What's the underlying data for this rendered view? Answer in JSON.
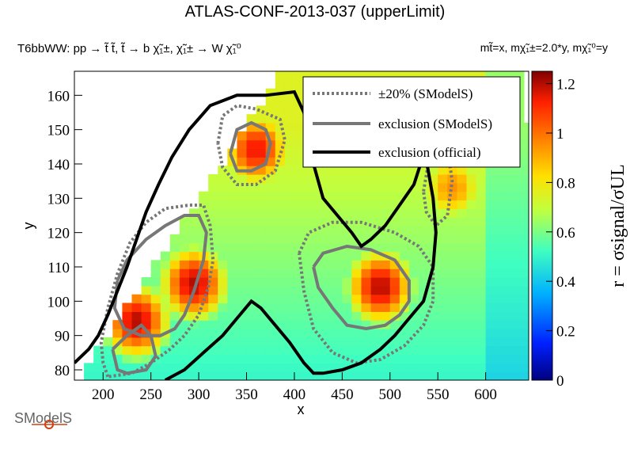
{
  "title": "ATLAS-CONF-2013-037     (upperLimit)",
  "subtitle_left": "T6bbWW: pp  → t̃ t̃, t̃  → b χ̃₁±, χ̃₁± → W χ̃₁⁰",
  "subtitle_right": "mt̃=x, mχ̃₁±=2.0*y, mχ̃₁⁰=y",
  "logo_text": "SModelS",
  "chart_data": {
    "type": "heatmap",
    "xlabel": "x",
    "ylabel": "y",
    "zlabel": "r = σsignal/σUL",
    "xlim": [
      170,
      645
    ],
    "ylim": [
      77,
      167
    ],
    "zlim": [
      0,
      1.25
    ],
    "x_ticks": [
      200,
      250,
      300,
      350,
      400,
      450,
      500,
      550,
      600
    ],
    "y_ticks": [
      80,
      90,
      100,
      110,
      120,
      130,
      140,
      150,
      160
    ],
    "z_ticks": [
      0,
      0.2,
      0.4,
      0.6,
      0.8,
      1.0,
      1.2
    ],
    "z_tick_labels": [
      "0",
      "0.2",
      "0.4",
      "0.6",
      "0.8",
      "1",
      "1.2"
    ],
    "legend_position": "top-right",
    "legend": [
      {
        "label": "±20% (SModelS)",
        "color": "#777777",
        "style": "dotted"
      },
      {
        "label": "exclusion (SModelS)",
        "color": "#777777",
        "style": "solid"
      },
      {
        "label": "exclusion (official)",
        "color": "#000000",
        "style": "solid"
      }
    ],
    "hotspots": [
      {
        "x": 230,
        "y": 93,
        "r": 1.2
      },
      {
        "x": 290,
        "y": 104,
        "r": 1.2
      },
      {
        "x": 355,
        "y": 143,
        "r": 1.15
      },
      {
        "x": 485,
        "y": 103,
        "r": 1.2
      },
      {
        "x": 560,
        "y": 132,
        "r": 0.95
      }
    ],
    "exclusion_official": [
      [
        [
          170,
          82
        ],
        [
          185,
          86
        ],
        [
          195,
          90
        ],
        [
          205,
          96
        ],
        [
          215,
          103
        ],
        [
          225,
          110
        ],
        [
          235,
          118
        ],
        [
          245,
          126
        ],
        [
          258,
          134
        ],
        [
          272,
          142
        ],
        [
          290,
          150
        ],
        [
          312,
          157
        ],
        [
          340,
          160
        ],
        [
          370,
          160
        ],
        [
          400,
          161
        ],
        [
          410,
          155
        ],
        [
          420,
          140
        ],
        [
          430,
          130
        ],
        [
          445,
          125
        ],
        [
          460,
          120
        ],
        [
          470,
          116
        ],
        [
          480,
          118
        ],
        [
          495,
          122
        ],
        [
          510,
          128
        ],
        [
          525,
          134
        ],
        [
          532,
          140
        ],
        [
          535,
          145
        ],
        [
          540,
          138
        ],
        [
          545,
          130
        ],
        [
          548,
          120
        ],
        [
          545,
          110
        ],
        [
          535,
          100
        ],
        [
          520,
          95
        ],
        [
          505,
          90
        ],
        [
          490,
          86
        ],
        [
          470,
          82
        ],
        [
          450,
          80
        ],
        [
          430,
          79
        ],
        [
          420,
          79
        ],
        [
          410,
          82
        ],
        [
          395,
          88
        ],
        [
          380,
          93
        ],
        [
          365,
          98
        ],
        [
          355,
          100
        ],
        [
          340,
          95
        ],
        [
          325,
          90
        ],
        [
          305,
          85
        ],
        [
          285,
          80
        ],
        [
          265,
          77
        ]
      ]
    ],
    "exclusion_smodels": [
      [
        [
          210,
          86
        ],
        [
          215,
          80
        ],
        [
          225,
          79
        ],
        [
          245,
          80
        ],
        [
          255,
          84
        ],
        [
          250,
          90
        ],
        [
          240,
          93
        ],
        [
          225,
          90
        ],
        [
          210,
          86
        ]
      ],
      [
        [
          215,
          106
        ],
        [
          225,
          112
        ],
        [
          245,
          118
        ],
        [
          265,
          122
        ],
        [
          285,
          125
        ],
        [
          300,
          125
        ],
        [
          308,
          120
        ],
        [
          305,
          112
        ],
        [
          295,
          103
        ],
        [
          285,
          96
        ],
        [
          275,
          92
        ],
        [
          260,
          90
        ],
        [
          240,
          90
        ],
        [
          222,
          92
        ],
        [
          212,
          98
        ],
        [
          215,
          106
        ]
      ],
      [
        [
          333,
          143
        ],
        [
          340,
          150
        ],
        [
          355,
          152
        ],
        [
          370,
          150
        ],
        [
          375,
          146
        ],
        [
          370,
          140
        ],
        [
          355,
          138
        ],
        [
          340,
          138
        ],
        [
          333,
          143
        ]
      ],
      [
        [
          420,
          110
        ],
        [
          430,
          114
        ],
        [
          455,
          116
        ],
        [
          480,
          115
        ],
        [
          505,
          112
        ],
        [
          520,
          106
        ],
        [
          520,
          100
        ],
        [
          510,
          96
        ],
        [
          495,
          93
        ],
        [
          475,
          92
        ],
        [
          455,
          93
        ],
        [
          440,
          98
        ],
        [
          425,
          104
        ],
        [
          420,
          110
        ]
      ]
    ],
    "band_smodels": [
      [
        [
          205,
          78
        ],
        [
          200,
          82
        ],
        [
          198,
          88
        ],
        [
          205,
          98
        ],
        [
          215,
          108
        ],
        [
          228,
          117
        ],
        [
          245,
          123
        ],
        [
          265,
          127
        ],
        [
          290,
          128
        ],
        [
          305,
          128
        ],
        [
          312,
          122
        ],
        [
          315,
          112
        ],
        [
          310,
          104
        ],
        [
          300,
          96
        ],
        [
          285,
          90
        ],
        [
          270,
          86
        ],
        [
          250,
          82
        ],
        [
          230,
          79
        ],
        [
          205,
          78
        ]
      ],
      [
        [
          320,
          146
        ],
        [
          325,
          154
        ],
        [
          340,
          157
        ],
        [
          360,
          156
        ],
        [
          385,
          153
        ],
        [
          390,
          147
        ],
        [
          380,
          138
        ],
        [
          360,
          134
        ],
        [
          340,
          134
        ],
        [
          325,
          139
        ],
        [
          320,
          146
        ]
      ],
      [
        [
          405,
          114
        ],
        [
          415,
          120
        ],
        [
          440,
          123
        ],
        [
          470,
          123
        ],
        [
          505,
          120
        ],
        [
          530,
          116
        ],
        [
          545,
          110
        ],
        [
          545,
          100
        ],
        [
          535,
          93
        ],
        [
          515,
          87
        ],
        [
          490,
          83
        ],
        [
          465,
          82
        ],
        [
          440,
          85
        ],
        [
          420,
          92
        ],
        [
          410,
          103
        ],
        [
          405,
          114
        ]
      ],
      [
        [
          535,
          132
        ],
        [
          540,
          140
        ],
        [
          550,
          148
        ],
        [
          560,
          145
        ],
        [
          565,
          135
        ],
        [
          560,
          125
        ],
        [
          548,
          122
        ],
        [
          538,
          126
        ],
        [
          535,
          132
        ]
      ]
    ]
  }
}
